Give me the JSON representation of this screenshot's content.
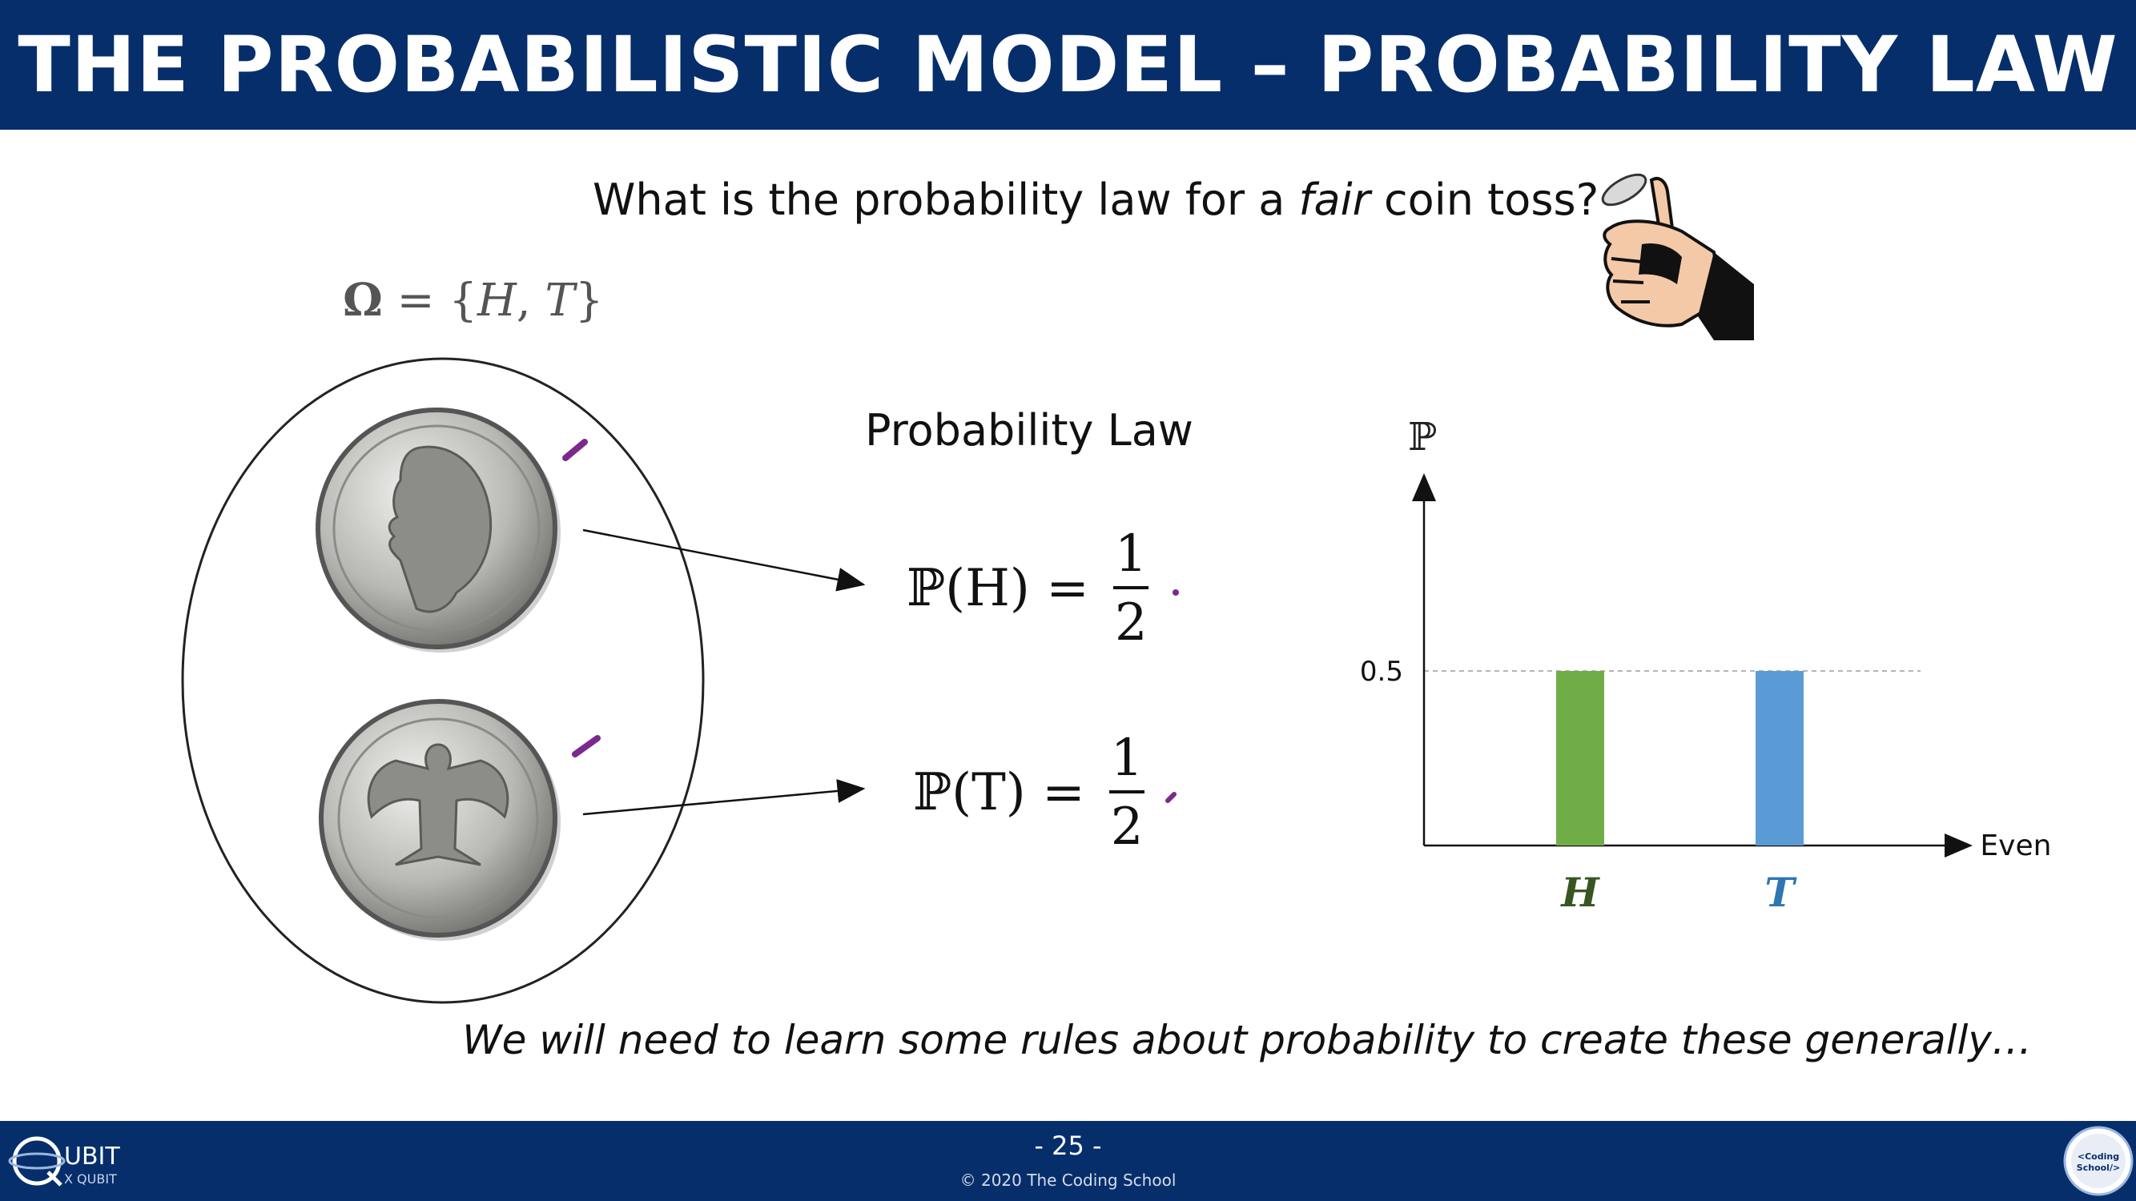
{
  "header": {
    "title": "THE PROBABILISTIC MODEL – PROBABILITY LAW"
  },
  "question": {
    "prefix": "What is the probability law for a ",
    "emphasis": "fair",
    "suffix": " coin toss?"
  },
  "sample_space": {
    "omega": "Ω",
    "equals": " = ",
    "set_open": "{",
    "heads": "H",
    "separator": ", ",
    "tails": "T",
    "set_close": "}"
  },
  "probability_law": {
    "label": "Probability Law",
    "heads_lhs": "ℙ(H) =",
    "tails_lhs": "ℙ(T) =",
    "numerator": "1",
    "denominator": "2"
  },
  "coins": {
    "heads_image": "quarter-heads",
    "tails_image": "quarter-tails"
  },
  "chart_data": {
    "type": "bar",
    "categories": [
      "H",
      "T"
    ],
    "values": [
      0.5,
      0.5
    ],
    "ylabel": "ℙ",
    "xlabel": "Event",
    "yticks": [
      "0.5"
    ],
    "ylim": [
      0,
      1
    ],
    "colors": [
      "#70ad47",
      "#5b9bd5"
    ],
    "category_label_colors": [
      "#375623",
      "#2e75b6"
    ],
    "grid": "dashed line at 0.5"
  },
  "footnote": "We will need to learn some rules about probability to create these generally…",
  "footer": {
    "page": "- 25 -",
    "copyright": "© 2020 The Coding School",
    "logo_left": "QUBIT X QUBIT",
    "logo_right": "The Coding School"
  },
  "colors": {
    "header_bg": "#062e6b",
    "annotation": "#7b2a8c"
  }
}
